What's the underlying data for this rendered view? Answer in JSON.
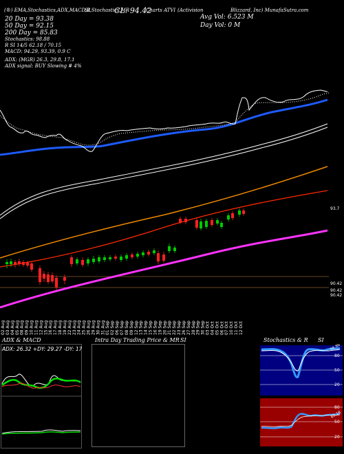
{
  "header": {
    "line1_left": "(®) EMA,Stochastics,ADX,MACD,R",
    "line1_mid": "SI,Stochastics,MR",
    "line1_cl": "CL: 94.42",
    "line1_symbol": "Charts ATVI",
    "line1_company": "(Activision",
    "line1_company2": "Blizzard, Inc) MunafaSutra.com",
    "avg_vol": "Avg Vol: 6.523  M",
    "day_vol": "Day Vol: 0   M",
    "ema20": "20   Day = 93.38",
    "ema50": "50   Day = 92.15",
    "ema200": "200   Day = 85.83",
    "stochastics": "Stochastics: 98.88",
    "rsi": "R                 SI 14/5 62.18 / 70.15",
    "macd": "MACD: 94.29, 93.39, 0.9 C",
    "adx": "ADX:                         (MGR) 26.3,  29.8,  17.1",
    "adx_signal": "ADX  signal:                                   BUY Slowing # 4%"
  },
  "colors": {
    "ema20": "#1e5bff",
    "ema50": "#ffffff",
    "ema100": "#f08a00",
    "ema150": "#ff2a00",
    "ema200": "#ff33ff",
    "up": "#00cc00",
    "down": "#ff2020"
  },
  "price_labels": [
    "93.7",
    "90.42",
    "90.42",
    "90.42"
  ],
  "x_dates": [
    "02 Aug",
    "03 Aug",
    "04 Aug",
    "05 Aug",
    "08 Aug",
    "09 Aug",
    "10 Aug",
    "11 Aug",
    "12 Aug",
    "15 Aug",
    "16 Aug",
    "17 Aug",
    "18 Aug",
    "19 Aug",
    "22 Aug",
    "23 Aug",
    "24 Aug",
    "25 Aug",
    "26 Aug",
    "29 Aug",
    "30 Aug",
    "31 Aug",
    "01 Sep",
    "02 Sep",
    "06 Sep",
    "07 Sep",
    "08 Sep",
    "09 Sep",
    "12 Sep",
    "13 Sep",
    "14 Sep",
    "15 Sep",
    "16 Sep",
    "19 Sep",
    "20 Sep",
    "21 Sep",
    "22 Sep",
    "23 Sep",
    "26 Sep",
    "27 Sep",
    "28 Sep",
    "29 Sep",
    "30 Sep",
    "03 Oct",
    "04 Oct",
    "05 Oct",
    "06 Oct",
    "07 Oct",
    "10 Oct",
    "11 Oct",
    "12 Oct"
  ],
  "panels": {
    "adx_title": "ADX  & MACD",
    "intraday_title": "Intra  Day Trading Price  & MR",
    "intraday_title2": "SI",
    "stoch_title": "Stochastics & R",
    "stoch_title2": "SI",
    "stoch_ticks": [
      "80",
      "50",
      "20"
    ],
    "stoch_value": "98.88",
    "rsi_ticks": [
      "80",
      "50",
      "20"
    ],
    "rsi_value": "62.18"
  },
  "chart_data": [
    {
      "type": "candlestick",
      "title": "",
      "series": [
        {
          "name": "20   Day",
          "values": [
            93.38
          ]
        },
        {
          "name": "50   Day",
          "values": [
            92.15
          ]
        },
        {
          "name": "200   Day",
          "values": [
            85.83
          ]
        }
      ],
      "annotations": [
        "93.7",
        "90.42"
      ]
    },
    {
      "type": "line",
      "title": "ADX  & MACD",
      "series": [
        {
          "name": "ADX",
          "values": [
            26.3,
            29.8,
            17.1
          ]
        },
        {
          "name": "MACD",
          "values": [
            94.29,
            93.39,
            0.9
          ]
        }
      ]
    },
    {
      "type": "line",
      "title": "Stochastics & R",
      "ylim": [
        0,
        100
      ],
      "series": [
        {
          "name": "Stochastics",
          "values": [
            98.88
          ]
        },
        {
          "name": "RSI",
          "values": [
            62.18,
            70.15
          ]
        }
      ]
    }
  ]
}
